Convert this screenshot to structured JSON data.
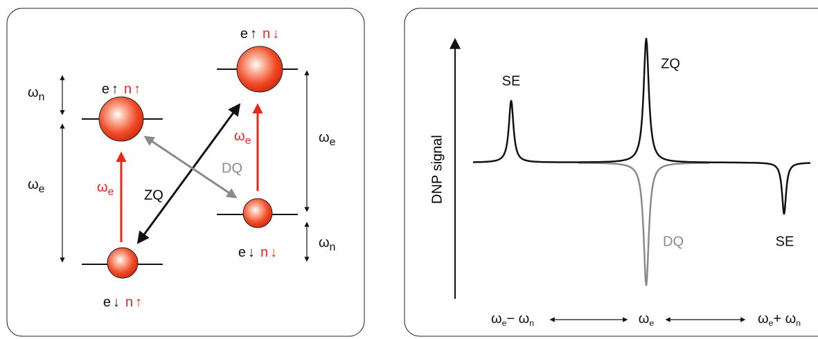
{
  "energy_diagram": {
    "states": [
      {
        "electron": "e",
        "electron_spin": "↑",
        "nucleus": "n",
        "nuclear_spin": "↑"
      },
      {
        "electron": "e",
        "electron_spin": "↑",
        "nucleus": "n",
        "nuclear_spin": "↓"
      },
      {
        "electron": "e",
        "electron_spin": "↓",
        "nucleus": "n",
        "nuclear_spin": "↓"
      },
      {
        "electron": "e",
        "electron_spin": "↓",
        "nucleus": "n",
        "nuclear_spin": "↑"
      }
    ],
    "splittings": [
      [
        {
          "text": "ω"
        },
        {
          "sub": "n"
        }
      ],
      [
        {
          "text": "ω"
        },
        {
          "sub": "e"
        }
      ],
      [
        {
          "text": "ω"
        },
        {
          "sub": "e"
        }
      ],
      [
        {
          "text": "ω"
        },
        {
          "sub": "n"
        }
      ]
    ],
    "transition_labels": [
      [
        {
          "text": "ω"
        },
        {
          "sub": "e"
        }
      ],
      [
        {
          "text": "ω"
        },
        {
          "sub": "e"
        }
      ]
    ],
    "zq_label": "ZQ",
    "dq_label": "DQ"
  },
  "spectrum": {
    "y_axis_label": "DNP signal",
    "peak_labels": [
      "SE",
      "ZQ",
      "DQ",
      "SE"
    ],
    "x_labels": [
      [
        {
          "text": "ω"
        },
        {
          "sub": "e"
        },
        {
          "text": "− ω"
        },
        {
          "sub": "n"
        }
      ],
      [
        {
          "text": "ω"
        },
        {
          "sub": "e"
        }
      ],
      [
        {
          "text": "ω"
        },
        {
          "sub": "e"
        },
        {
          "text": "+ ω"
        },
        {
          "sub": "n"
        }
      ]
    ]
  }
}
